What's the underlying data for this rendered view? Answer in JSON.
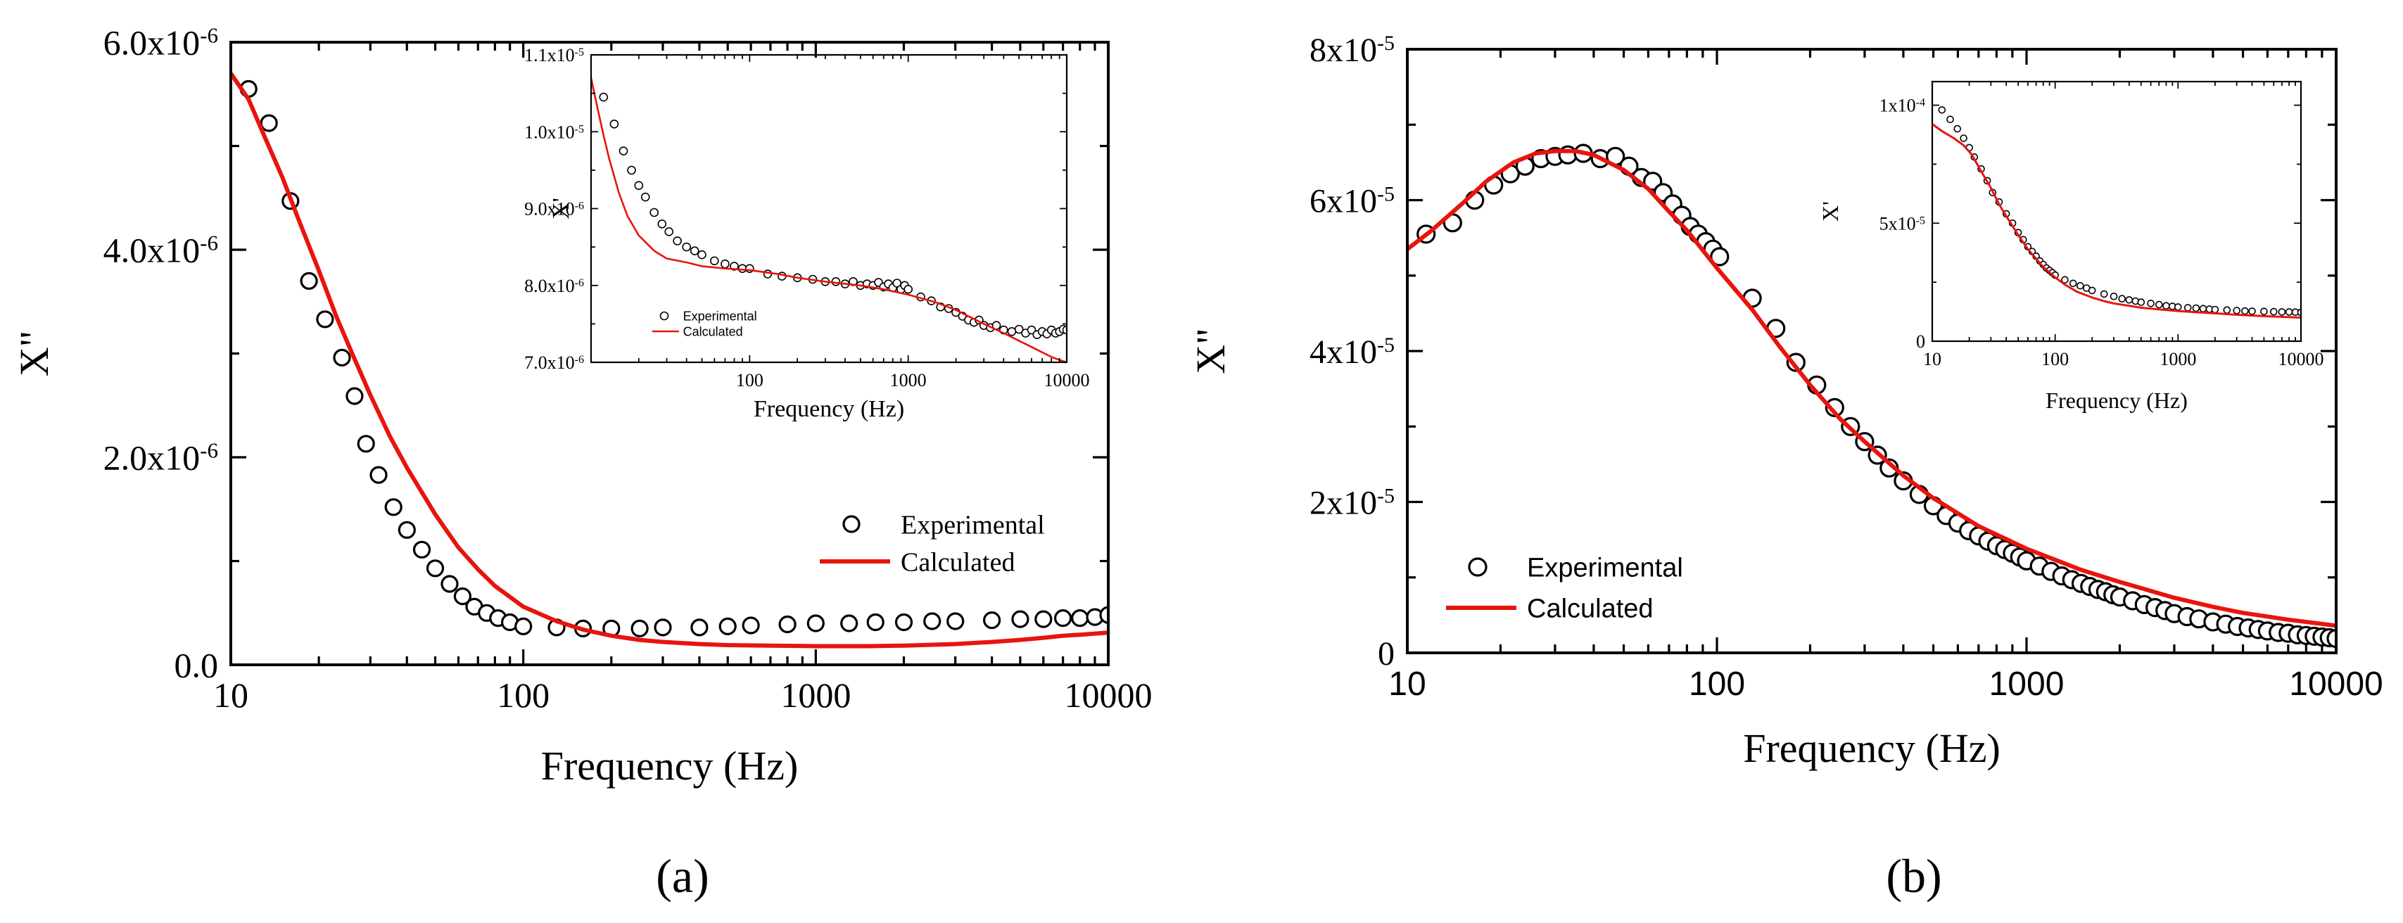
{
  "figure": {
    "panel_labels": [
      "(a)",
      "(b)"
    ]
  },
  "colors": {
    "experimental": "#000000",
    "calculated": "#e8140e",
    "axes": "#000000"
  },
  "chart_data": [
    {
      "id": "a-main",
      "type": "scatter",
      "xscale": "log",
      "xlabel": "Frequency (Hz)",
      "ylabel": "X\"",
      "xlim": [
        10,
        10000
      ],
      "ylim": [
        0,
        6e-06
      ],
      "xticks": [
        10,
        100,
        1000,
        10000
      ],
      "xtick_labels": [
        "10",
        "100",
        "1000",
        "10000"
      ],
      "yticks": [
        0,
        2e-06,
        4e-06,
        6e-06
      ],
      "ytick_labels": [
        {
          "m": "0.0",
          "e": ""
        },
        {
          "m": "2.0x10",
          "e": "-6"
        },
        {
          "m": "4.0x10",
          "e": "-6"
        },
        {
          "m": "6.0x10",
          "e": "-6"
        }
      ],
      "legend": {
        "position": "center-right",
        "experimental": "Experimental",
        "calculated": "Calculated"
      },
      "series": [
        {
          "name": "Experimental",
          "style": "markers",
          "x": [
            11.5,
            13.5,
            16,
            18.5,
            21,
            24,
            26.5,
            29,
            32,
            36,
            40,
            45,
            50,
            56,
            62,
            68,
            75,
            82,
            90,
            100,
            130,
            160,
            200,
            250,
            300,
            400,
            500,
            600,
            800,
            1000,
            1300,
            1600,
            2000,
            2500,
            3000,
            4000,
            5000,
            6000,
            7000,
            8000,
            9000,
            10000
          ],
          "y": [
            5.55e-06,
            5.22e-06,
            4.47e-06,
            3.7e-06,
            3.33e-06,
            2.96e-06,
            2.59e-06,
            2.13e-06,
            1.83e-06,
            1.52e-06,
            1.3e-06,
            1.11e-06,
            9.3e-07,
            7.8e-07,
            6.6e-07,
            5.6e-07,
            5e-07,
            4.5e-07,
            4.1e-07,
            3.7e-07,
            3.6e-07,
            3.5e-07,
            3.5e-07,
            3.5e-07,
            3.6e-07,
            3.6e-07,
            3.7e-07,
            3.8e-07,
            3.9e-07,
            4e-07,
            4e-07,
            4.1e-07,
            4.1e-07,
            4.2e-07,
            4.2e-07,
            4.3e-07,
            4.4e-07,
            4.4e-07,
            4.5e-07,
            4.5e-07,
            4.6e-07,
            4.8e-07
          ]
        },
        {
          "name": "Calculated",
          "style": "line",
          "x": [
            10,
            11.5,
            13,
            15,
            17,
            20,
            23,
            26,
            30,
            35,
            40,
            50,
            60,
            70,
            80,
            100,
            130,
            160,
            200,
            250,
            300,
            400,
            500,
            700,
            1000,
            1500,
            2000,
            3000,
            4000,
            5000,
            6000,
            7000,
            8000,
            10000
          ],
          "y": [
            5.7e-06,
            5.45e-06,
            5.1e-06,
            4.7e-06,
            4.3e-06,
            3.8e-06,
            3.35e-06,
            3e-06,
            2.6e-06,
            2.2e-06,
            1.9e-06,
            1.45e-06,
            1.13e-06,
            9.2e-07,
            7.6e-07,
            5.6e-07,
            4.2e-07,
            3.4e-07,
            2.8e-07,
            2.4e-07,
            2.2e-07,
            2e-07,
            1.9e-07,
            1.85e-07,
            1.8e-07,
            1.8e-07,
            1.85e-07,
            2e-07,
            2.2e-07,
            2.4e-07,
            2.6e-07,
            2.8e-07,
            2.9e-07,
            3.1e-07
          ]
        }
      ]
    },
    {
      "id": "a-inset",
      "type": "scatter",
      "xscale": "log",
      "xlabel": "Frequency (Hz)",
      "ylabel": "X'",
      "xlim": [
        10,
        10000
      ],
      "ylim": [
        7e-06,
        1.1e-05
      ],
      "xticks": [
        100,
        1000,
        10000
      ],
      "xtick_labels": [
        "100",
        "1000",
        "10000"
      ],
      "yticks": [
        7e-06,
        8e-06,
        9e-06,
        1e-05,
        1.1e-05
      ],
      "ytick_labels": [
        {
          "m": "7.0x10",
          "e": "-6"
        },
        {
          "m": "8.0x10",
          "e": "-6"
        },
        {
          "m": "9.0x10",
          "e": "-6"
        },
        {
          "m": "1.0x10",
          "e": "-5"
        },
        {
          "m": "1.1x10",
          "e": "-5"
        }
      ],
      "legend": {
        "position": "lower-left",
        "experimental": "Experimental",
        "calculated": "Calculated"
      },
      "series": [
        {
          "name": "Experimental",
          "style": "markers",
          "x": [
            12,
            14,
            16,
            18,
            20,
            22,
            25,
            28,
            31,
            35,
            40,
            45,
            50,
            60,
            70,
            80,
            90,
            100,
            130,
            160,
            200,
            250,
            300,
            350,
            400,
            450,
            500,
            550,
            600,
            650,
            700,
            750,
            800,
            850,
            900,
            950,
            1000,
            1200,
            1400,
            1600,
            1800,
            2000,
            2200,
            2400,
            2600,
            2800,
            3000,
            3300,
            3600,
            4000,
            4500,
            5000,
            5500,
            6000,
            6500,
            7000,
            7500,
            8000,
            8500,
            9000,
            9500,
            10000
          ],
          "y": [
            1.045e-05,
            1.01e-05,
            9.75e-06,
            9.5e-06,
            9.3e-06,
            9.15e-06,
            8.95e-06,
            8.8e-06,
            8.7e-06,
            8.58e-06,
            8.5e-06,
            8.45e-06,
            8.4e-06,
            8.32e-06,
            8.28e-06,
            8.25e-06,
            8.22e-06,
            8.22e-06,
            8.15e-06,
            8.12e-06,
            8.1e-06,
            8.08e-06,
            8.05e-06,
            8.05e-06,
            8.02e-06,
            8.05e-06,
            8e-06,
            8.02e-06,
            8e-06,
            8.04e-06,
            7.98e-06,
            8.02e-06,
            7.97e-06,
            8.03e-06,
            7.95e-06,
            8e-06,
            7.95e-06,
            7.85e-06,
            7.8e-06,
            7.72e-06,
            7.7e-06,
            7.65e-06,
            7.6e-06,
            7.55e-06,
            7.52e-06,
            7.55e-06,
            7.48e-06,
            7.45e-06,
            7.48e-06,
            7.42e-06,
            7.4e-06,
            7.43e-06,
            7.38e-06,
            7.42e-06,
            7.36e-06,
            7.4e-06,
            7.37e-06,
            7.42e-06,
            7.38e-06,
            7.4e-06,
            7.43e-06,
            7.42e-06
          ]
        },
        {
          "name": "Calculated",
          "style": "line",
          "x": [
            10,
            11,
            12,
            13,
            15,
            17,
            20,
            25,
            30,
            40,
            50,
            70,
            100,
            150,
            200,
            300,
            500,
            700,
            1000,
            1500,
            2000,
            3000,
            4000,
            5000,
            6000,
            7000,
            8000,
            9000,
            10000
          ],
          "y": [
            1.07e-05,
            1.03e-05,
            9.95e-06,
            9.65e-06,
            9.2e-06,
            8.9e-06,
            8.65e-06,
            8.45e-06,
            8.35e-06,
            8.3e-06,
            8.25e-06,
            8.22e-06,
            8.2e-06,
            8.15e-06,
            8.1e-06,
            8.05e-06,
            8e-06,
            7.95e-06,
            7.88e-06,
            7.78e-06,
            7.68e-06,
            7.5e-06,
            7.38e-06,
            7.28e-06,
            7.2e-06,
            7.13e-06,
            7.07e-06,
            7.03e-06,
            7e-06
          ]
        }
      ]
    },
    {
      "id": "b-main",
      "type": "scatter",
      "xscale": "log",
      "xlabel": "Frequency (Hz)",
      "ylabel": "X\"",
      "xlim": [
        10,
        10000
      ],
      "ylim": [
        0,
        8e-05
      ],
      "xticks": [
        10,
        100,
        1000,
        10000
      ],
      "xtick_labels": [
        "10",
        "100",
        "1000",
        "10000"
      ],
      "yticks": [
        0,
        2e-05,
        4e-05,
        6e-05,
        8e-05
      ],
      "ytick_labels": [
        {
          "m": "0",
          "e": ""
        },
        {
          "m": "2x10",
          "e": "-5"
        },
        {
          "m": "4x10",
          "e": "-5"
        },
        {
          "m": "6x10",
          "e": "-5"
        },
        {
          "m": "8x10",
          "e": "-5"
        }
      ],
      "legend": {
        "position": "lower-left",
        "experimental": "Experimental",
        "calculated": "Calculated"
      },
      "series": [
        {
          "name": "Experimental",
          "style": "markers",
          "x": [
            11.5,
            14,
            16.5,
            19,
            21.5,
            24,
            27,
            30,
            33,
            37,
            42,
            47,
            52,
            57,
            62,
            67,
            72,
            77,
            82,
            87,
            92,
            97,
            102,
            130,
            155,
            180,
            210,
            240,
            270,
            300,
            330,
            360,
            400,
            450,
            500,
            550,
            600,
            650,
            700,
            750,
            800,
            850,
            900,
            950,
            1000,
            1100,
            1200,
            1300,
            1400,
            1500,
            1600,
            1700,
            1800,
            1900,
            2000,
            2200,
            2400,
            2600,
            2800,
            3000,
            3300,
            3600,
            4000,
            4400,
            4800,
            5200,
            5600,
            6000,
            6500,
            7000,
            7500,
            8000,
            8500,
            9000,
            9500,
            10000
          ],
          "y": [
            5.55e-05,
            5.7e-05,
            6e-05,
            6.2e-05,
            6.35e-05,
            6.45e-05,
            6.55e-05,
            6.58e-05,
            6.6e-05,
            6.62e-05,
            6.55e-05,
            6.58e-05,
            6.45e-05,
            6.3e-05,
            6.25e-05,
            6.1e-05,
            5.95e-05,
            5.8e-05,
            5.65e-05,
            5.55e-05,
            5.45e-05,
            5.35e-05,
            5.25e-05,
            4.7e-05,
            4.3e-05,
            3.85e-05,
            3.55e-05,
            3.25e-05,
            3e-05,
            2.8e-05,
            2.62e-05,
            2.45e-05,
            2.28e-05,
            2.1e-05,
            1.95e-05,
            1.82e-05,
            1.72e-05,
            1.62e-05,
            1.55e-05,
            1.48e-05,
            1.42e-05,
            1.37e-05,
            1.32e-05,
            1.27e-05,
            1.22e-05,
            1.15e-05,
            1.08e-05,
            1.02e-05,
            9.7e-06,
            9.2e-06,
            8.8e-06,
            8.4e-06,
            8.1e-06,
            7.7e-06,
            7.4e-06,
            6.9e-06,
            6.4e-06,
            6e-06,
            5.6e-06,
            5.2e-06,
            4.8e-06,
            4.5e-06,
            4.1e-06,
            3.8e-06,
            3.5e-06,
            3.3e-06,
            3.1e-06,
            2.9e-06,
            2.7e-06,
            2.6e-06,
            2.4e-06,
            2.3e-06,
            2.2e-06,
            2.1e-06,
            2e-06,
            1.9e-06
          ]
        },
        {
          "name": "Calculated",
          "style": "line",
          "x": [
            10,
            12,
            15,
            18,
            22,
            26,
            30,
            35,
            40,
            50,
            60,
            70,
            80,
            100,
            130,
            160,
            200,
            250,
            300,
            400,
            500,
            700,
            1000,
            1500,
            2000,
            3000,
            4000,
            5000,
            7000,
            10000
          ],
          "y": [
            5.35e-05,
            5.6e-05,
            5.95e-05,
            6.25e-05,
            6.5e-05,
            6.62e-05,
            6.65e-05,
            6.65e-05,
            6.6e-05,
            6.4e-05,
            6.15e-05,
            5.85e-05,
            5.6e-05,
            5.1e-05,
            4.55e-05,
            4.05e-05,
            3.55e-05,
            3.1e-05,
            2.8e-05,
            2.35e-05,
            2.05e-05,
            1.68e-05,
            1.38e-05,
            1.1e-05,
            9.4e-06,
            7.3e-06,
            6.1e-06,
            5.3e-06,
            4.4e-06,
            3.6e-06
          ]
        }
      ]
    },
    {
      "id": "b-inset",
      "type": "scatter",
      "xscale": "log",
      "xlabel": "Frequency (Hz)",
      "ylabel": "X'",
      "xlim": [
        10,
        10000
      ],
      "ylim": [
        0,
        0.00011
      ],
      "xticks": [
        10,
        100,
        1000,
        10000
      ],
      "xtick_labels": [
        "10",
        "100",
        "1000",
        "10000"
      ],
      "yticks": [
        0,
        5e-05,
        0.0001
      ],
      "ytick_labels": [
        {
          "m": "0",
          "e": ""
        },
        {
          "m": "5x10",
          "e": "-5"
        },
        {
          "m": "1x10",
          "e": "-4"
        }
      ],
      "legend": null,
      "series": [
        {
          "name": "Experimental",
          "style": "markers",
          "x": [
            12,
            14,
            16,
            18,
            20,
            22,
            25,
            28,
            31,
            35,
            40,
            45,
            50,
            55,
            60,
            65,
            70,
            75,
            80,
            85,
            90,
            95,
            100,
            120,
            140,
            160,
            180,
            200,
            250,
            300,
            350,
            400,
            450,
            500,
            600,
            700,
            800,
            900,
            1000,
            1200,
            1400,
            1600,
            1800,
            2000,
            2500,
            3000,
            3500,
            4000,
            5000,
            6000,
            7000,
            8000,
            9000,
            10000
          ],
          "y": [
            9.8e-05,
            9.4e-05,
            9e-05,
            8.6e-05,
            8.2e-05,
            7.8e-05,
            7.3e-05,
            6.8e-05,
            6.3e-05,
            5.9e-05,
            5.4e-05,
            5e-05,
            4.6e-05,
            4.3e-05,
            4e-05,
            3.8e-05,
            3.6e-05,
            3.4e-05,
            3.25e-05,
            3.1e-05,
            3e-05,
            2.9e-05,
            2.8e-05,
            2.6e-05,
            2.45e-05,
            2.35e-05,
            2.25e-05,
            2.15e-05,
            2e-05,
            1.9e-05,
            1.8e-05,
            1.75e-05,
            1.7e-05,
            1.65e-05,
            1.6e-05,
            1.55e-05,
            1.5e-05,
            1.48e-05,
            1.45e-05,
            1.42e-05,
            1.4e-05,
            1.38e-05,
            1.36e-05,
            1.34e-05,
            1.32e-05,
            1.3e-05,
            1.28e-05,
            1.27e-05,
            1.26e-05,
            1.25e-05,
            1.24e-05,
            1.24e-05,
            1.23e-05,
            1.22e-05
          ]
        },
        {
          "name": "Calculated",
          "style": "line",
          "x": [
            10,
            12,
            15,
            18,
            21,
            25,
            30,
            35,
            40,
            50,
            60,
            70,
            80,
            100,
            120,
            150,
            200,
            250,
            300,
            400,
            500,
            700,
            1000,
            1500,
            2000,
            3000,
            5000,
            7000,
            10000
          ],
          "y": [
            9.2e-05,
            8.9e-05,
            8.6e-05,
            8.3e-05,
            7.9e-05,
            7.2e-05,
            6.5e-05,
            5.8e-05,
            5.3e-05,
            4.5e-05,
            3.9e-05,
            3.5e-05,
            3.15e-05,
            2.7e-05,
            2.4e-05,
            2.1e-05,
            1.85e-05,
            1.7e-05,
            1.6e-05,
            1.5e-05,
            1.42e-05,
            1.35e-05,
            1.28e-05,
            1.22e-05,
            1.18e-05,
            1.12e-05,
            1.06e-05,
            1.03e-05,
            1e-05
          ]
        }
      ]
    }
  ]
}
